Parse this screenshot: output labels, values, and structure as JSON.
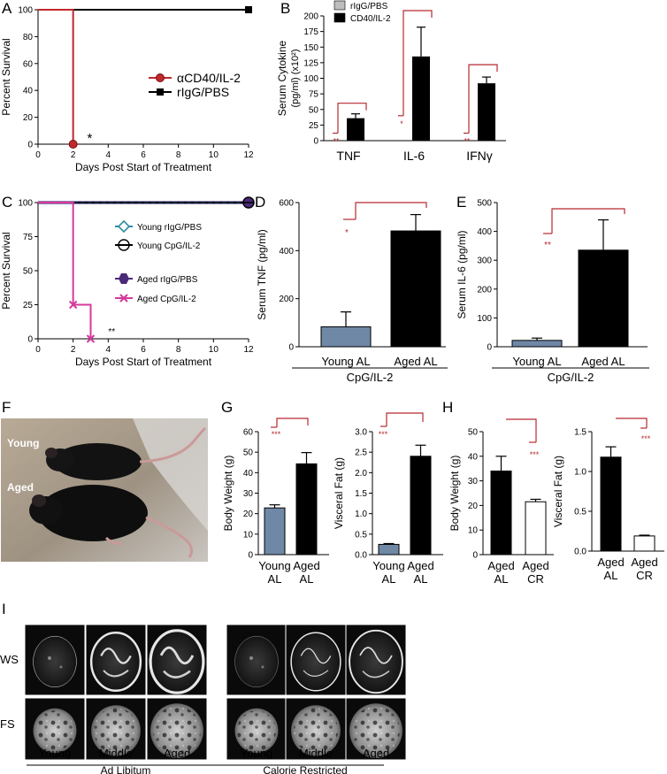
{
  "colors": {
    "red_line": "#c0282c",
    "black": "#000000",
    "steel_blue": "#6f88a6",
    "teal": "#2a8fa0",
    "magenta": "#d6399c",
    "purple": "#4b2a7a",
    "sig_red": "#b7282e",
    "grey_legend": "#bdbdbd"
  },
  "panel_letters": {
    "A": "A",
    "B": "B",
    "C": "C",
    "D": "D",
    "E": "E",
    "F": "F",
    "G": "G",
    "H": "H",
    "I": "I"
  },
  "photo": {
    "label_young": "Young",
    "label_aged": "Aged"
  },
  "mri": {
    "row_labels": [
      "WS",
      "FS"
    ],
    "col_labels": [
      "Young",
      "Middle",
      "Aged",
      "Young",
      "Middle",
      "Aged"
    ],
    "group_labels": [
      "Ad Libitum",
      "Calorie Restricted"
    ]
  },
  "chart_data": [
    {
      "id": "A",
      "type": "line",
      "xlabel": "Days Post Start of Treatment",
      "ylabel": "Percent Survival",
      "xlim": [
        0,
        12
      ],
      "ylim": [
        0,
        100
      ],
      "xticks": [
        "0",
        "2",
        "4",
        "6",
        "8",
        "10",
        "12"
      ],
      "yticks": [
        "0",
        "20",
        "40",
        "60",
        "80",
        "100"
      ],
      "annotation": "*",
      "legend_position": "center-right",
      "series": [
        {
          "name": "αCD40/IL-2",
          "color": "#c0282c",
          "marker": "circle",
          "x": [
            0,
            2,
            2
          ],
          "y": [
            100,
            100,
            0
          ]
        },
        {
          "name": "rIgG/PBS",
          "color": "#000000",
          "marker": "square",
          "x": [
            0,
            12
          ],
          "y": [
            100,
            100
          ]
        }
      ]
    },
    {
      "id": "B",
      "type": "bar",
      "ylabel": "Serum Cytokine (pg/ml) (x10²)",
      "ylim": [
        0,
        200
      ],
      "yticks": [
        "0",
        "25",
        "50",
        "75",
        "100",
        "125",
        "150",
        "175",
        "200"
      ],
      "categories": [
        "TNF",
        "IL-6",
        "IFNγ"
      ],
      "significance": [
        "**",
        "*",
        "**"
      ],
      "legend_position": "top",
      "series": [
        {
          "name": "rIgG/PBS",
          "color": "#bdbdbd",
          "values": [
            0,
            0,
            0
          ],
          "errors": [
            0,
            0,
            0
          ]
        },
        {
          "name": "CD40/IL-2",
          "color": "#000000",
          "values": [
            36,
            135,
            92
          ],
          "errors": [
            7,
            47,
            10
          ]
        }
      ]
    },
    {
      "id": "C",
      "type": "line",
      "xlabel": "Days Post Start of Treatment",
      "ylabel": "Percent Survival",
      "xlim": [
        0,
        12
      ],
      "ylim": [
        0,
        100
      ],
      "xticks": [
        "0",
        "2",
        "4",
        "6",
        "8",
        "10",
        "12"
      ],
      "yticks": [
        "0",
        "25",
        "50",
        "75",
        "100"
      ],
      "annotation": "**",
      "legend_position": "center",
      "series": [
        {
          "name": "Young rIgG/PBS",
          "color": "#2a8fa0",
          "marker": "diamond",
          "x": [
            0,
            12
          ],
          "y": [
            100,
            100
          ]
        },
        {
          "name": "Young CpG/IL-2",
          "color": "#000000",
          "marker": "circle-open",
          "x": [
            0,
            12
          ],
          "y": [
            100,
            100
          ]
        },
        {
          "name": "Aged rIgG/PBS",
          "color": "#4b2a7a",
          "marker": "hexagon",
          "x": [
            0,
            12
          ],
          "y": [
            100,
            100
          ]
        },
        {
          "name": "Aged CpG/IL-2",
          "color": "#d6399c",
          "marker": "x",
          "x": [
            0,
            2,
            2,
            3,
            3
          ],
          "y": [
            100,
            100,
            25,
            25,
            0
          ]
        }
      ]
    },
    {
      "id": "D",
      "type": "bar",
      "ylabel": "Serum TNF (pg/ml)",
      "ylim": [
        0,
        600
      ],
      "yticks": [
        "0",
        "200",
        "400",
        "600"
      ],
      "categories": [
        "Young AL",
        "Aged AL"
      ],
      "group_label": "CpG/IL-2",
      "significance": "*",
      "values": [
        83,
        482
      ],
      "errors": [
        62,
        68
      ],
      "colors": [
        "#6f88a6",
        "#000000"
      ]
    },
    {
      "id": "E",
      "type": "bar",
      "ylabel": "Serum IL-6 (pg/ml)",
      "ylim": [
        0,
        500
      ],
      "yticks": [
        "0",
        "100",
        "200",
        "300",
        "400",
        "500"
      ],
      "categories": [
        "Young AL",
        "Aged AL"
      ],
      "group_label": "CpG/IL-2",
      "significance": "**",
      "values": [
        22,
        335
      ],
      "errors": [
        8,
        105
      ],
      "colors": [
        "#6f88a6",
        "#000000"
      ]
    },
    {
      "id": "G1",
      "type": "bar",
      "ylabel": "Body Weight (g)",
      "ylim": [
        0,
        60
      ],
      "yticks": [
        "0",
        "10",
        "20",
        "30",
        "40",
        "50",
        "60"
      ],
      "categories": [
        "Young AL",
        "Aged AL"
      ],
      "significance": "***",
      "values": [
        22.8,
        44.3
      ],
      "errors": [
        1.5,
        5.5
      ],
      "colors": [
        "#6f88a6",
        "#000000"
      ]
    },
    {
      "id": "G2",
      "type": "bar",
      "ylabel": "Visceral Fat (g)",
      "ylim": [
        0,
        3.0
      ],
      "yticks": [
        "0.0",
        "0.5",
        "1.0",
        "1.5",
        "2.0",
        "2.5",
        "3.0"
      ],
      "categories": [
        "Young AL",
        "Aged AL"
      ],
      "significance": "***",
      "values": [
        0.25,
        2.4
      ],
      "errors": [
        0.02,
        0.27
      ],
      "colors": [
        "#6f88a6",
        "#000000"
      ]
    },
    {
      "id": "H1",
      "type": "bar",
      "ylabel": "Body Weight (g)",
      "ylim": [
        0,
        50
      ],
      "yticks": [
        "0",
        "10",
        "20",
        "30",
        "40",
        "50"
      ],
      "categories": [
        "Aged AL",
        "Aged CR"
      ],
      "significance": "***",
      "values": [
        34,
        21.5
      ],
      "errors": [
        6,
        1
      ],
      "colors": [
        "#000000",
        "#ffffff"
      ]
    },
    {
      "id": "H2",
      "type": "bar",
      "ylabel": "Visceral Fat (g)",
      "ylim": [
        0,
        1.5
      ],
      "yticks": [
        "0.0",
        "0.5",
        "1.0",
        "1.5"
      ],
      "categories": [
        "Aged AL",
        "Aged CR"
      ],
      "significance": "***",
      "values": [
        1.18,
        0.19
      ],
      "errors": [
        0.13,
        0.01
      ],
      "colors": [
        "#000000",
        "#ffffff"
      ]
    }
  ]
}
